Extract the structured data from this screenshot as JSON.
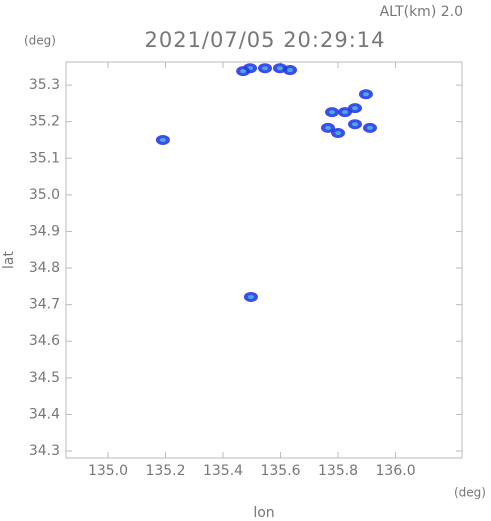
{
  "chart_data": {
    "type": "scatter",
    "title": "2021/07/05 20:29:14",
    "subtitle": "ALT(km) 2.0",
    "x_label": "lon",
    "y_label": "lat",
    "x_unit": "(deg)",
    "y_unit": "(deg)",
    "x": [
      135.494,
      135.546,
      135.598,
      135.633,
      135.47,
      135.859,
      135.824,
      135.779,
      135.897,
      135.911,
      135.859,
      135.765,
      135.8,
      135.191,
      135.497
    ],
    "y": [
      35.346,
      35.346,
      35.346,
      35.341,
      35.338,
      35.237,
      35.226,
      35.226,
      35.275,
      35.183,
      35.193,
      35.183,
      35.169,
      35.15,
      34.721
    ],
    "color": "#2838e8",
    "xlim": [
      134.854,
      136.231
    ],
    "ylim": [
      34.281,
      35.363
    ],
    "xticks": [
      {
        "value": 135,
        "label": "135.0"
      },
      135.2,
      135.4,
      135.6,
      135.8,
      {
        "value": 136,
        "label": "136.0"
      }
    ],
    "yticks": [
      34.3,
      34.4,
      34.5,
      34.6,
      34.7,
      34.8,
      34.9,
      {
        "value": 35,
        "label": "35.0"
      },
      35.1,
      35.2,
      35.3
    ]
  }
}
